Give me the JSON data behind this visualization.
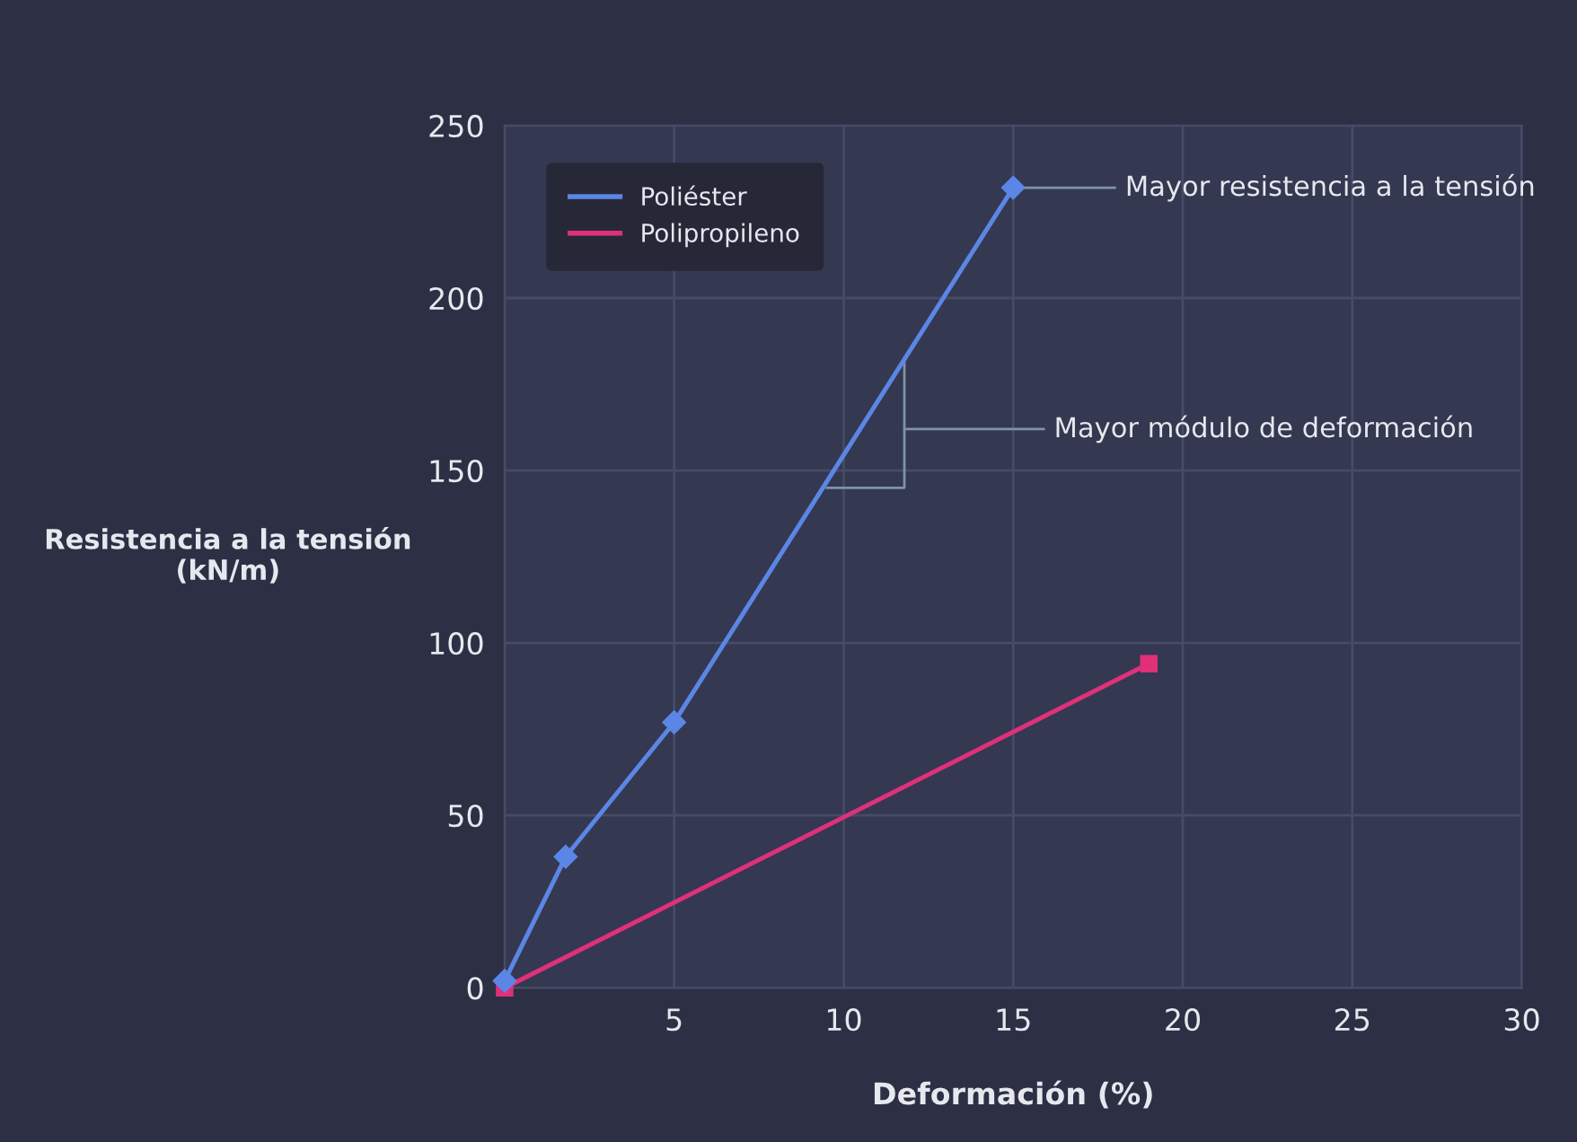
{
  "chart_data": {
    "type": "line",
    "xlabel": "Deformación (%)",
    "ylabel": "Resistencia a la tensión\n(kN/m)",
    "series": [
      {
        "name": "Poliéster",
        "color": "#5b86e5",
        "marker": "diamond",
        "x": [
          0,
          1.8,
          5,
          15
        ],
        "values": [
          2,
          38,
          77,
          232
        ]
      },
      {
        "name": "Polipropileno",
        "color": "#e0307a",
        "marker": "square",
        "x": [
          0,
          19
        ],
        "values": [
          0,
          94
        ]
      }
    ],
    "annotations": [
      {
        "text": "Mayor resistencia a la tensión",
        "x": 15,
        "y": 232
      },
      "Mayor módulo de deformación"
    ],
    "xlim": [
      0,
      30
    ],
    "ylim": [
      0,
      250
    ],
    "xticks": [
      {
        "value": 0,
        "label": null
      },
      5,
      10,
      15,
      20,
      25,
      30
    ],
    "yticks": [
      0,
      50,
      100,
      150,
      200,
      250
    ],
    "grid": true,
    "legend": "top left",
    "line_style": "solid"
  }
}
